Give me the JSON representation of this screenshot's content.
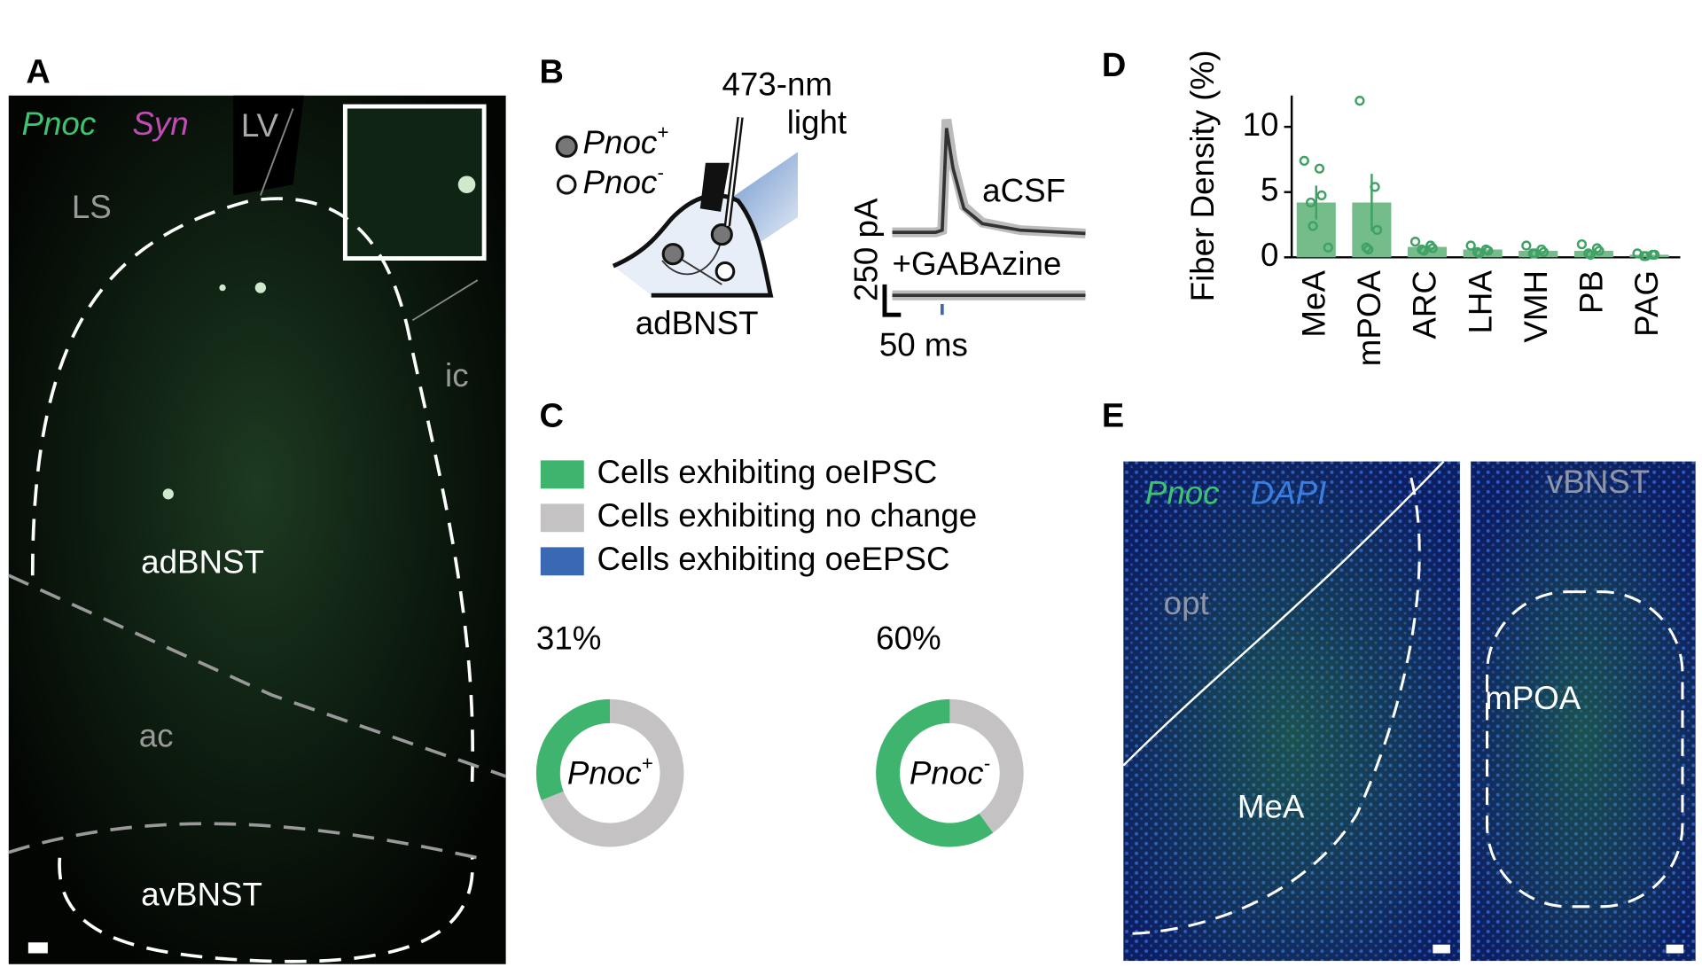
{
  "panels": {
    "letters": [
      "A",
      "B",
      "C",
      "D",
      "E"
    ],
    "A": {
      "channels": [
        "Pnoc",
        "Syn"
      ],
      "regions": [
        "LV",
        "LS",
        "adBNST",
        "ic",
        "ac",
        "avBNST"
      ]
    },
    "B": {
      "light": [
        "473-nm",
        "light"
      ],
      "cells": [
        {
          "name": "Pnoc",
          "sup": "+"
        },
        {
          "name": "Pnoc",
          "sup": "-"
        }
      ],
      "region": "adBNST",
      "conditions": [
        "aCSF",
        "+GABAzine"
      ],
      "scale_current": "250 pA",
      "scale_time": "50 ms"
    },
    "E": {
      "channels": [
        "Pnoc",
        "DAPI"
      ],
      "regions": [
        "opt",
        "MeA",
        "vBNST",
        "mPOA"
      ]
    }
  },
  "chart_data": [
    {
      "type": "donut",
      "categories": [
        "Cells exhibiting oeIPSC",
        "Cells exhibiting no change",
        "Cells exhibiting oeEPSC"
      ],
      "colors": [
        "#3fb46e",
        "#c4c2c2",
        "#3a68b5"
      ],
      "pies": [
        {
          "name": "Pnoc",
          "sup": "+",
          "values": [
            31,
            69,
            0
          ],
          "value_labels": [
            "31%",
            null,
            null
          ]
        },
        {
          "name": "Pnoc",
          "sup": "-",
          "values": [
            60,
            40,
            0
          ],
          "value_labels": [
            "60%",
            null,
            null
          ]
        }
      ]
    },
    {
      "type": "bar",
      "ylabel": "Fiber Density (%)",
      "categories": [
        "MeA",
        "mPOA",
        "ARC",
        "LHA",
        "VMH",
        "PB",
        "PAG"
      ],
      "values": [
        4.2,
        4.2,
        0.8,
        0.6,
        0.5,
        0.5,
        0.2
      ],
      "errors": [
        1.3,
        2.2,
        0.2,
        0.1,
        0.1,
        0.15,
        0.05
      ],
      "points": [
        [
          7.4,
          6.8,
          4.75,
          4.2,
          2.4,
          0.75
        ],
        [
          12.0,
          5.4,
          2.1,
          0.75,
          0.6
        ],
        [
          1.2,
          0.9,
          0.7,
          0.6,
          0.5
        ],
        [
          0.9,
          0.6,
          0.5,
          0.4,
          0.3
        ],
        [
          0.9,
          0.6,
          0.4,
          0.3,
          0.3
        ],
        [
          1.0,
          0.7,
          0.5,
          0.3,
          0.2
        ],
        [
          0.3,
          0.2,
          0.2,
          0.1,
          0.1
        ]
      ],
      "color": "#74bd8b",
      "point_color": "#3fa264",
      "ylim": [
        0,
        12.4
      ],
      "yticks": [
        0,
        5,
        10
      ]
    }
  ]
}
